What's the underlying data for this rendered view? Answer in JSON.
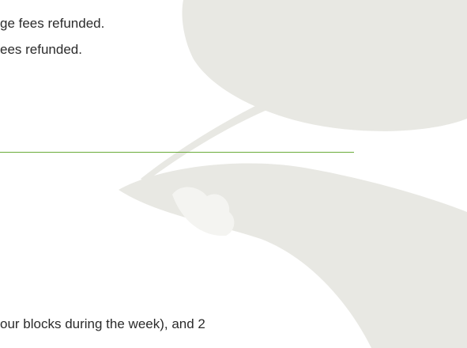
{
  "lines": [
    "ge fees refunded.",
    "ees refunded.",
    "our blocks during the week), and 2"
  ]
}
